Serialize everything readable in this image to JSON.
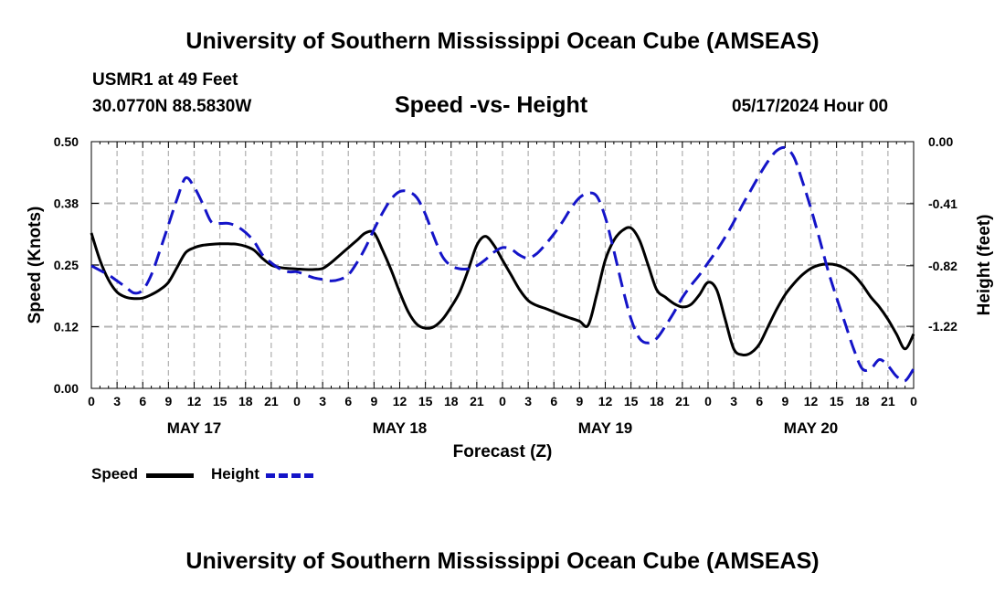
{
  "header": {
    "title": "University of Southern Mississippi Ocean Cube (AMSEAS)",
    "station": "USMR1 at 49 Feet",
    "location": "30.0770N  88.5830W",
    "datetime": "05/17/2024 Hour 00"
  },
  "footer": {
    "title": "University of Southern Mississippi Ocean Cube (AMSEAS)"
  },
  "legend": {
    "speed_label": "Speed",
    "height_label": "Height"
  },
  "colors": {
    "speed": "#000000",
    "height": "#1414c8",
    "grid": "#b4b4b4"
  },
  "chart_data": {
    "type": "line",
    "title": "Speed -vs- Height",
    "xlabel": "Forecast (Z)",
    "ylabel": "Speed (Knots)",
    "y2label": "Height (feet)",
    "x_unit": "hours since 05/17 00Z",
    "xlim": [
      0,
      96
    ],
    "ylim": [
      0,
      0.5
    ],
    "y2lim": [
      -1.63,
      0
    ],
    "x_ticks": [
      0,
      3,
      6,
      9,
      12,
      15,
      18,
      21,
      24,
      27,
      30,
      33,
      36,
      39,
      42,
      45,
      48,
      51,
      54,
      57,
      60,
      63,
      66,
      69,
      72,
      75,
      78,
      81,
      84,
      87,
      90,
      93,
      96
    ],
    "x_tick_labels": [
      "0",
      "3",
      "6",
      "9",
      "12",
      "15",
      "18",
      "21",
      "0",
      "3",
      "6",
      "9",
      "12",
      "15",
      "18",
      "21",
      "0",
      "3",
      "6",
      "9",
      "12",
      "15",
      "18",
      "21",
      "0",
      "3",
      "6",
      "9",
      "12",
      "15",
      "18",
      "21",
      "0"
    ],
    "day_ticks": [
      12,
      36,
      60,
      84
    ],
    "day_labels": [
      "MAY 17",
      "MAY 18",
      "MAY 19",
      "MAY 20"
    ],
    "y_ticks": [
      0,
      0.125,
      0.25,
      0.375,
      0.5
    ],
    "y_tick_labels": [
      "0.00",
      "0.12",
      "0.25",
      "0.38",
      "0.50"
    ],
    "y2_ticks": [
      0,
      -0.41,
      -0.82,
      -1.22
    ],
    "y2_tick_labels": [
      "0.00",
      "-0.41",
      "-0.82",
      "-1.22"
    ],
    "series": [
      {
        "name": "Speed",
        "axis": "left",
        "style": "solid",
        "x": [
          0,
          1,
          2,
          3,
          4,
          5,
          6,
          7,
          8,
          9,
          10,
          11,
          12,
          13,
          14,
          15,
          16,
          17,
          18,
          19,
          20,
          21,
          22,
          23,
          24,
          25,
          26,
          27,
          28,
          29,
          30,
          31,
          32,
          33,
          34,
          35,
          36,
          37,
          38,
          39,
          40,
          41,
          42,
          43,
          44,
          45,
          46,
          47,
          48,
          49,
          50,
          51,
          52,
          53,
          54,
          55,
          56,
          57,
          58,
          59,
          60,
          61,
          62,
          63,
          64,
          65,
          66,
          67,
          68,
          69,
          70,
          71,
          72,
          73,
          74,
          75,
          76,
          77,
          78,
          79,
          80,
          81,
          82,
          83,
          84,
          85,
          86,
          87,
          88,
          89,
          90,
          91,
          92,
          93,
          94,
          95,
          96
        ],
        "values": [
          0.315,
          0.26,
          0.22,
          0.195,
          0.185,
          0.182,
          0.183,
          0.19,
          0.2,
          0.215,
          0.245,
          0.275,
          0.285,
          0.29,
          0.292,
          0.293,
          0.293,
          0.292,
          0.288,
          0.28,
          0.263,
          0.25,
          0.245,
          0.243,
          0.242,
          0.241,
          0.241,
          0.243,
          0.255,
          0.27,
          0.285,
          0.3,
          0.315,
          0.315,
          0.28,
          0.24,
          0.195,
          0.155,
          0.13,
          0.122,
          0.125,
          0.14,
          0.165,
          0.195,
          0.24,
          0.29,
          0.308,
          0.29,
          0.26,
          0.23,
          0.2,
          0.178,
          0.168,
          0.162,
          0.155,
          0.148,
          0.142,
          0.136,
          0.128,
          0.19,
          0.26,
          0.3,
          0.32,
          0.325,
          0.3,
          0.25,
          0.2,
          0.185,
          0.172,
          0.165,
          0.17,
          0.19,
          0.215,
          0.2,
          0.14,
          0.08,
          0.068,
          0.072,
          0.09,
          0.125,
          0.16,
          0.19,
          0.212,
          0.23,
          0.243,
          0.25,
          0.252,
          0.25,
          0.243,
          0.23,
          0.21,
          0.185,
          0.165,
          0.14,
          0.11,
          0.08,
          0.11
        ]
      },
      {
        "name": "Height",
        "axis": "right",
        "style": "dashed",
        "x": [
          0,
          1,
          2,
          3,
          4,
          5,
          6,
          7,
          8,
          9,
          10,
          11,
          12,
          13,
          14,
          15,
          16,
          17,
          18,
          19,
          20,
          21,
          22,
          23,
          24,
          25,
          26,
          27,
          28,
          29,
          30,
          31,
          32,
          33,
          34,
          35,
          36,
          37,
          38,
          39,
          40,
          41,
          42,
          43,
          44,
          45,
          46,
          47,
          48,
          49,
          50,
          51,
          52,
          53,
          54,
          55,
          56,
          57,
          58,
          59,
          60,
          61,
          62,
          63,
          64,
          65,
          66,
          67,
          68,
          69,
          70,
          71,
          72,
          73,
          74,
          75,
          76,
          77,
          78,
          79,
          80,
          81,
          82,
          83,
          84,
          85,
          86,
          87,
          88,
          89,
          90,
          91,
          92,
          93,
          94,
          95,
          96
        ],
        "values": [
          -0.82,
          -0.85,
          -0.88,
          -0.92,
          -0.96,
          -1.0,
          -0.98,
          -0.88,
          -0.72,
          -0.55,
          -0.38,
          -0.24,
          -0.3,
          -0.41,
          -0.53,
          -0.54,
          -0.54,
          -0.56,
          -0.6,
          -0.66,
          -0.75,
          -0.8,
          -0.84,
          -0.86,
          -0.86,
          -0.88,
          -0.9,
          -0.91,
          -0.92,
          -0.91,
          -0.88,
          -0.8,
          -0.7,
          -0.58,
          -0.47,
          -0.38,
          -0.33,
          -0.33,
          -0.37,
          -0.48,
          -0.63,
          -0.76,
          -0.82,
          -0.84,
          -0.84,
          -0.82,
          -0.78,
          -0.73,
          -0.7,
          -0.71,
          -0.75,
          -0.77,
          -0.74,
          -0.68,
          -0.61,
          -0.53,
          -0.44,
          -0.37,
          -0.34,
          -0.36,
          -0.5,
          -0.72,
          -0.96,
          -1.17,
          -1.3,
          -1.33,
          -1.3,
          -1.22,
          -1.13,
          -1.03,
          -0.95,
          -0.88,
          -0.8,
          -0.72,
          -0.63,
          -0.53,
          -0.42,
          -0.32,
          -0.22,
          -0.13,
          -0.06,
          -0.04,
          -0.1,
          -0.26,
          -0.44,
          -0.64,
          -0.85,
          -1.03,
          -1.2,
          -1.37,
          -1.5,
          -1.5,
          -1.44,
          -1.48,
          -1.55,
          -1.58,
          -1.5
        ]
      }
    ]
  }
}
